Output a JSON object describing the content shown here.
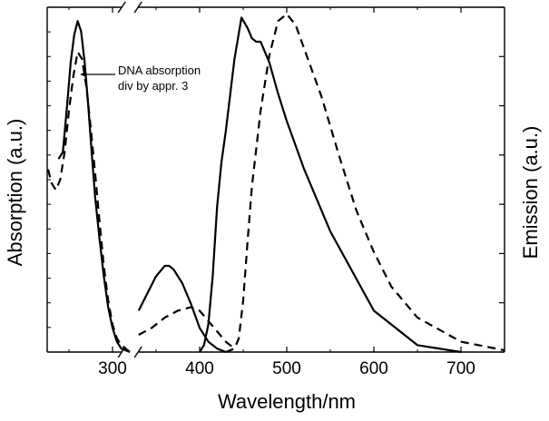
{
  "chart_data": {
    "type": "line",
    "xlabel": "Wavelength/nm",
    "ylabel_left": "Absorption (a.u.)",
    "ylabel_right": "Emission (a.u.)",
    "xlim": [
      225,
      750
    ],
    "ylim": [
      0,
      1
    ],
    "x_axis_break_at": 320,
    "x_ticks": [
      300,
      400,
      500,
      600,
      700
    ],
    "x_tick_labels": [
      "300",
      "400",
      "500",
      "600",
      "700"
    ],
    "y_ticks_shown": false,
    "annotation": {
      "line1": "DNA absorption",
      "line2": "div by appr. 3"
    },
    "series": [
      {
        "name": "absorption (solid)",
        "style": "solid",
        "x": [
          238,
          243,
          248,
          252,
          256,
          260,
          264,
          268,
          272,
          276,
          280,
          285,
          290,
          295,
          300,
          305,
          310,
          315,
          320
        ],
        "y": [
          0.56,
          0.58,
          0.72,
          0.84,
          0.92,
          0.96,
          0.93,
          0.84,
          0.72,
          0.58,
          0.45,
          0.33,
          0.22,
          0.13,
          0.07,
          0.03,
          0.01,
          0.005,
          0.0
        ]
      },
      {
        "name": "absorption (dashed)",
        "style": "dashed",
        "x": [
          226,
          230,
          235,
          240,
          245,
          250,
          255,
          260,
          265,
          270,
          275,
          280,
          285,
          290,
          295,
          300,
          305,
          310,
          315,
          320
        ],
        "y": [
          0.53,
          0.49,
          0.47,
          0.5,
          0.58,
          0.7,
          0.8,
          0.87,
          0.85,
          0.77,
          0.65,
          0.52,
          0.38,
          0.25,
          0.15,
          0.08,
          0.04,
          0.02,
          0.01,
          0.0
        ]
      },
      {
        "name": "CT absorption (solid)",
        "style": "solid",
        "x": [
          330,
          340,
          350,
          360,
          365,
          370,
          380,
          390,
          400,
          410,
          420,
          430
        ],
        "y": [
          0.12,
          0.17,
          0.22,
          0.25,
          0.25,
          0.24,
          0.2,
          0.14,
          0.07,
          0.03,
          0.01,
          0.0
        ]
      },
      {
        "name": "CT absorption (dashed)",
        "style": "dashed",
        "x": [
          330,
          345,
          360,
          375,
          390,
          400,
          410,
          420,
          430,
          440
        ],
        "y": [
          0.05,
          0.07,
          0.1,
          0.12,
          0.13,
          0.12,
          0.09,
          0.06,
          0.03,
          0.01
        ]
      },
      {
        "name": "emission (solid)",
        "style": "solid",
        "x": [
          400,
          405,
          410,
          415,
          420,
          425,
          430,
          440,
          448,
          455,
          460,
          465,
          470,
          480,
          490,
          500,
          520,
          550,
          600,
          650,
          700
        ],
        "y": [
          0.0,
          0.02,
          0.08,
          0.22,
          0.42,
          0.55,
          0.64,
          0.85,
          0.97,
          0.94,
          0.91,
          0.9,
          0.9,
          0.84,
          0.75,
          0.67,
          0.53,
          0.35,
          0.12,
          0.02,
          0.0
        ]
      },
      {
        "name": "emission (dashed)",
        "style": "dashed",
        "x": [
          430,
          440,
          445,
          450,
          455,
          460,
          470,
          480,
          490,
          500,
          510,
          520,
          540,
          560,
          580,
          600,
          620,
          650,
          700,
          750
        ],
        "y": [
          0.0,
          0.01,
          0.04,
          0.15,
          0.32,
          0.48,
          0.7,
          0.86,
          0.96,
          0.98,
          0.95,
          0.88,
          0.74,
          0.57,
          0.41,
          0.29,
          0.19,
          0.1,
          0.03,
          0.005
        ]
      }
    ]
  }
}
